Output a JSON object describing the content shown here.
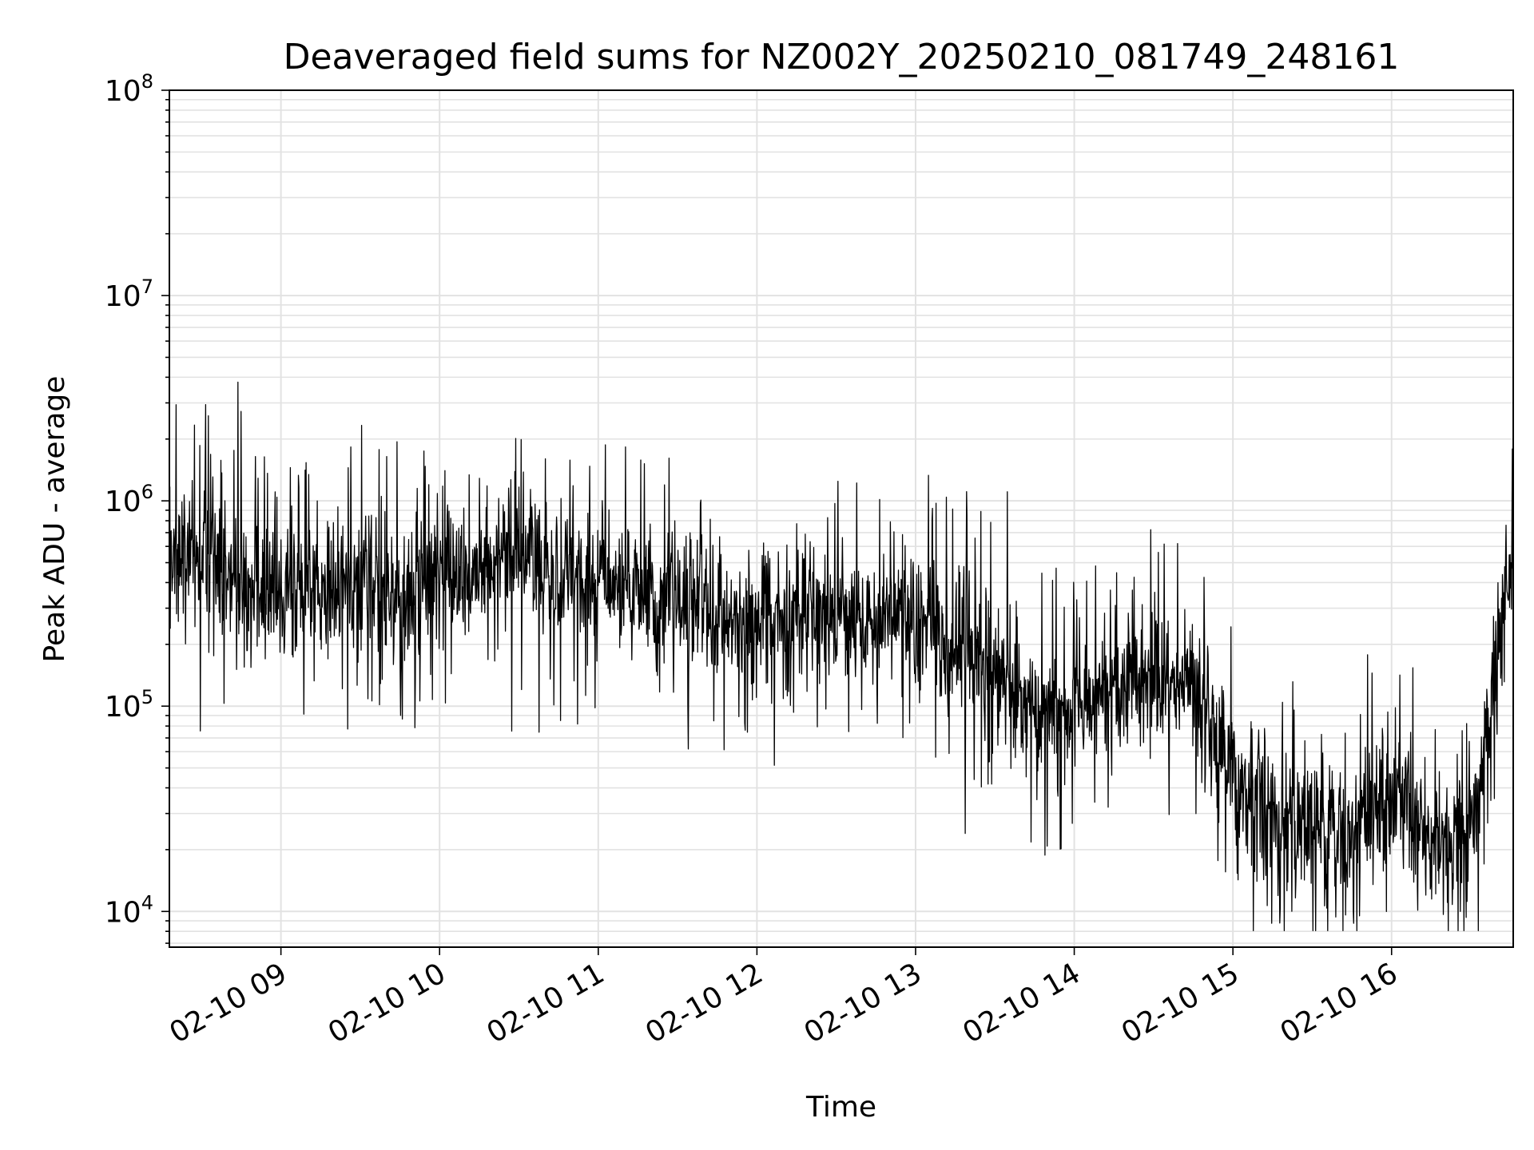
{
  "chart_data": {
    "type": "line",
    "title": "Deaveraged field sums for NZ002Y_20250210_081749_248161",
    "xlabel": "Time",
    "ylabel": "Peak ADU - average",
    "yscale": "log",
    "ylim": [
      6700,
      100000000
    ],
    "xlim": [
      "2025-02-10 08:17:49",
      "2025-02-10 16:46:00"
    ],
    "x_ticks": [
      "02-10 09",
      "02-10 10",
      "02-10 11",
      "02-10 12",
      "02-10 13",
      "02-10 14",
      "02-10 15",
      "02-10 16"
    ],
    "y_ticks": [
      {
        "base": "10",
        "exp": "4"
      },
      {
        "base": "10",
        "exp": "5"
      },
      {
        "base": "10",
        "exp": "6"
      },
      {
        "base": "10",
        "exp": "7"
      },
      {
        "base": "10",
        "exp": "8"
      }
    ],
    "grid": true,
    "line_color": "#000000",
    "series": [
      {
        "x": [
          "2025-02-10 08:17:49",
          "2025-02-10 08:30",
          "2025-02-10 08:45",
          "2025-02-10 09:00",
          "2025-02-10 09:15",
          "2025-02-10 09:30",
          "2025-02-10 09:45",
          "2025-02-10 10:00",
          "2025-02-10 10:15",
          "2025-02-10 10:30",
          "2025-02-10 10:45",
          "2025-02-10 11:00",
          "2025-02-10 11:15",
          "2025-02-10 11:30",
          "2025-02-10 11:45",
          "2025-02-10 12:00",
          "2025-02-10 12:15",
          "2025-02-10 12:30",
          "2025-02-10 12:45",
          "2025-02-10 13:00",
          "2025-02-10 13:15",
          "2025-02-10 13:30",
          "2025-02-10 13:45",
          "2025-02-10 14:00",
          "2025-02-10 14:15",
          "2025-02-10 14:30",
          "2025-02-10 14:45",
          "2025-02-10 15:00",
          "2025-02-10 15:15",
          "2025-02-10 15:30",
          "2025-02-10 15:45",
          "2025-02-10 16:00",
          "2025-02-10 16:15",
          "2025-02-10 16:30",
          "2025-02-10 16:45"
        ],
        "values": [
          600000,
          550000,
          450000,
          350000,
          400000,
          380000,
          350000,
          400000,
          450000,
          600000,
          400000,
          450000,
          350000,
          350000,
          280000,
          250000,
          300000,
          300000,
          260000,
          250000,
          200000,
          150000,
          100000,
          100000,
          120000,
          130000,
          130000,
          50000,
          30000,
          25000,
          22000,
          40000,
          22000,
          25000,
          450000
        ]
      }
    ]
  }
}
